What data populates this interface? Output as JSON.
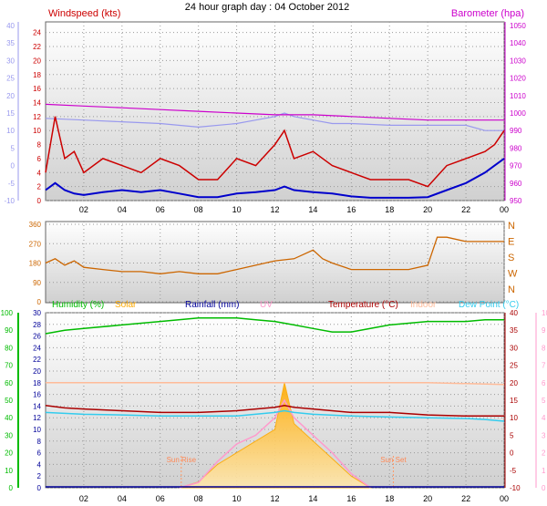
{
  "page": {
    "title": "24 hour graph day : 04 October 2012"
  },
  "colors": {
    "windspeed": "#cc0000",
    "avg_wind": "#0000cc",
    "pressure": "#cc00cc",
    "temp_scale": "#9999ee",
    "humidity": "#00bb00",
    "solar": "#ffaa00",
    "rain": "#000099",
    "uv": "#ff99cc",
    "temperature": "#aa0000",
    "indoor": "#ffbb99",
    "dewpoint": "#33ccee",
    "wind_dir": "#cc6600",
    "dir_letters": "#cc6600"
  },
  "chart_data": [
    {
      "type": "line",
      "id": "wind_baro",
      "title": "24 hour graph day : 04 October 2012",
      "y_left_label": "Windspeed (kts)",
      "y_right_label": "Barometer (hpa)",
      "x_ticks": [
        "02",
        "04",
        "06",
        "08",
        "10",
        "12",
        "14",
        "16",
        "18",
        "20",
        "22",
        "00"
      ],
      "y_left_ticks": [
        "0",
        "2",
        "4",
        "6",
        "8",
        "10",
        "12",
        "14",
        "16",
        "18",
        "20",
        "22",
        "24"
      ],
      "y_left_range": [
        0,
        25
      ],
      "y_temp_ticks": [
        "-10",
        "-5",
        "0",
        "5",
        "10",
        "15",
        "20",
        "25",
        "30",
        "35",
        "40"
      ],
      "y_temp_range": [
        -10,
        40
      ],
      "y_right_ticks": [
        "950",
        "960",
        "970",
        "980",
        "990",
        "1000",
        "1010",
        "1020",
        "1030",
        "1040",
        "1050"
      ],
      "y_right_range": [
        950,
        1050
      ],
      "series": [
        {
          "key": "gust",
          "x": [
            0,
            0.5,
            1,
            1.5,
            2,
            3,
            4,
            5,
            6,
            7,
            8,
            9,
            10,
            11,
            12,
            12.5,
            13,
            14,
            15,
            16,
            17,
            18,
            19,
            20,
            21,
            22,
            23,
            23.5,
            24
          ],
          "y": [
            4,
            12,
            6,
            7,
            4,
            6,
            5,
            4,
            6,
            5,
            3,
            3,
            6,
            5,
            8,
            10,
            6,
            7,
            5,
            4,
            3,
            3,
            3,
            2,
            5,
            6,
            7,
            8,
            10
          ]
        },
        {
          "key": "avg",
          "x": [
            0,
            0.5,
            1,
            1.5,
            2,
            3,
            4,
            5,
            6,
            7,
            8,
            9,
            10,
            11,
            12,
            12.5,
            13,
            14,
            15,
            16,
            17,
            18,
            19,
            20,
            21,
            22,
            23,
            23.5,
            24
          ],
          "y": [
            1.5,
            2.5,
            1.5,
            1,
            0.8,
            1.2,
            1.5,
            1.2,
            1.5,
            1,
            0.5,
            0.5,
            1,
            1.2,
            1.5,
            2,
            1.5,
            1.2,
            1,
            0.6,
            0.4,
            0.4,
            0.4,
            0.5,
            1.5,
            2.5,
            4,
            5,
            6
          ]
        },
        {
          "key": "pressure",
          "x": [
            0,
            2,
            4,
            6,
            8,
            10,
            12,
            14,
            16,
            18,
            20,
            22,
            24
          ],
          "y": [
            1005,
            1004,
            1003,
            1002,
            1001,
            1000,
            999,
            999,
            998,
            997,
            996,
            996,
            996
          ]
        },
        {
          "key": "temp_scale",
          "x": [
            0,
            2,
            4,
            6,
            8,
            10,
            11,
            12,
            12.5,
            13,
            14,
            15,
            16,
            18,
            20,
            22,
            23,
            24
          ],
          "y": [
            13.5,
            13,
            12.5,
            12,
            11,
            12,
            13,
            14,
            15,
            14,
            13,
            12,
            12,
            11.5,
            11.5,
            11.5,
            10,
            10
          ]
        }
      ]
    },
    {
      "type": "line",
      "id": "wind_dir",
      "y_ticks": [
        "0",
        "90",
        "180",
        "270",
        "360"
      ],
      "y_range": [
        0,
        360
      ],
      "dir_letters": [
        "N",
        "W",
        "S",
        "E",
        "N"
      ],
      "series": [
        {
          "key": "direction",
          "x": [
            0,
            0.5,
            1,
            1.5,
            2,
            3,
            4,
            5,
            6,
            7,
            8,
            9,
            10,
            11,
            12,
            13,
            14,
            14.5,
            15,
            16,
            17,
            18,
            19,
            20,
            20.5,
            21,
            22,
            23,
            24
          ],
          "y": [
            180,
            200,
            170,
            190,
            160,
            150,
            140,
            140,
            130,
            140,
            130,
            130,
            150,
            170,
            190,
            200,
            240,
            200,
            180,
            150,
            150,
            150,
            150,
            170,
            300,
            300,
            280,
            280,
            280
          ]
        }
      ]
    },
    {
      "type": "line",
      "id": "temp_hum",
      "legend": [
        "Humidity (%)",
        "Solar",
        "Rainfall (mm)",
        "UV",
        "Temperature (°C)",
        "Indoor",
        "Dew Point (°C)"
      ],
      "y_hum_ticks": [
        "0",
        "10",
        "20",
        "30",
        "40",
        "50",
        "60",
        "70",
        "80",
        "90",
        "100"
      ],
      "y_hum_range": [
        0,
        100
      ],
      "y_rain_ticks": [
        "0",
        "2",
        "4",
        "6",
        "8",
        "10",
        "12",
        "14",
        "16",
        "18",
        "20",
        "22",
        "24",
        "26",
        "28",
        "30"
      ],
      "y_rain_range": [
        0,
        30
      ],
      "y_temp_ticks": [
        "-10",
        "-5",
        "0",
        "5",
        "10",
        "15",
        "20",
        "25",
        "30",
        "35",
        "40"
      ],
      "y_temp_range": [
        -10,
        40
      ],
      "y_uv_ticks": [
        "0",
        "1",
        "2",
        "3",
        "4",
        "5",
        "6",
        "7",
        "8",
        "9",
        "10"
      ],
      "y_uv_range": [
        0,
        10
      ],
      "annotations": [
        "Sun Rise",
        "Sun Set"
      ],
      "series": [
        {
          "key": "humidity",
          "x": [
            0,
            1,
            2,
            4,
            6,
            8,
            10,
            11,
            12,
            13,
            14,
            15,
            16,
            17,
            18,
            20,
            22,
            23,
            24
          ],
          "y": [
            88,
            90,
            91,
            93,
            95,
            97,
            97,
            96,
            95,
            93,
            91,
            89,
            89,
            91,
            93,
            95,
            95,
            96,
            96
          ]
        },
        {
          "key": "indoor",
          "x": [
            0,
            4,
            8,
            12,
            16,
            20,
            24
          ],
          "y": [
            20,
            20,
            20,
            20,
            20,
            20,
            19.5
          ]
        },
        {
          "key": "temperature",
          "x": [
            0,
            1,
            2,
            4,
            6,
            8,
            10,
            12,
            12.5,
            13,
            14,
            16,
            18,
            20,
            22,
            24
          ],
          "y": [
            13.5,
            12.8,
            12.5,
            12,
            11.5,
            11.5,
            12,
            13,
            13.5,
            13,
            12.5,
            11.5,
            11.5,
            10.8,
            10.5,
            10.5
          ]
        },
        {
          "key": "dewpoint",
          "x": [
            0,
            2,
            4,
            6,
            8,
            10,
            12,
            12.5,
            13,
            14,
            16,
            18,
            20,
            22,
            23,
            24
          ],
          "y": [
            11.5,
            11,
            10.8,
            10.5,
            10.5,
            10.5,
            11.5,
            12,
            11.5,
            11,
            10.5,
            10.2,
            10,
            9.8,
            9.5,
            9
          ]
        },
        {
          "key": "solar",
          "x": [
            7,
            8,
            9,
            10,
            11,
            12,
            12.5,
            13,
            14,
            15,
            16,
            17
          ],
          "y": [
            0,
            1,
            4,
            6,
            8,
            10,
            18,
            11,
            8,
            5,
            2,
            0
          ]
        },
        {
          "key": "uv",
          "x": [
            7,
            8,
            9,
            10,
            11,
            12,
            12.5,
            13,
            14,
            15,
            16,
            17
          ],
          "y": [
            0,
            0.3,
            1.5,
            2.5,
            3,
            4,
            5,
            4,
            3,
            2,
            0.8,
            0
          ]
        }
      ]
    }
  ]
}
